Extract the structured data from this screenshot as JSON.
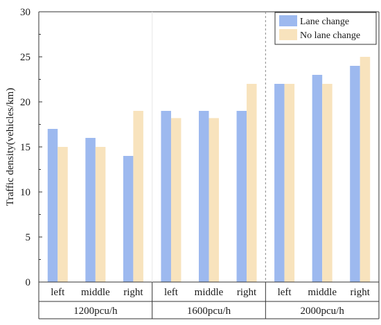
{
  "chart_data": {
    "type": "bar",
    "ylabel": "Traffic density(vehicles/km)",
    "ylim": [
      0,
      30
    ],
    "yticks": [
      0,
      5,
      10,
      15,
      20,
      25,
      30
    ],
    "groups": [
      {
        "name": "1200pcu/h",
        "categories": [
          "left",
          "middle",
          "right"
        ]
      },
      {
        "name": "1600pcu/h",
        "categories": [
          "left",
          "middle",
          "right"
        ]
      },
      {
        "name": "2000pcu/h",
        "categories": [
          "left",
          "middle",
          "right"
        ]
      }
    ],
    "series": [
      {
        "name": "Lane change",
        "color": "#9db9ef",
        "values": [
          17,
          16,
          14,
          19,
          19,
          19,
          22,
          23,
          24
        ]
      },
      {
        "name": "No lane change",
        "color": "#f8e3bd",
        "values": [
          15,
          15,
          19,
          18.2,
          18.2,
          22,
          22,
          22,
          25
        ]
      }
    ],
    "legend_position": "top-right",
    "grid": false
  }
}
